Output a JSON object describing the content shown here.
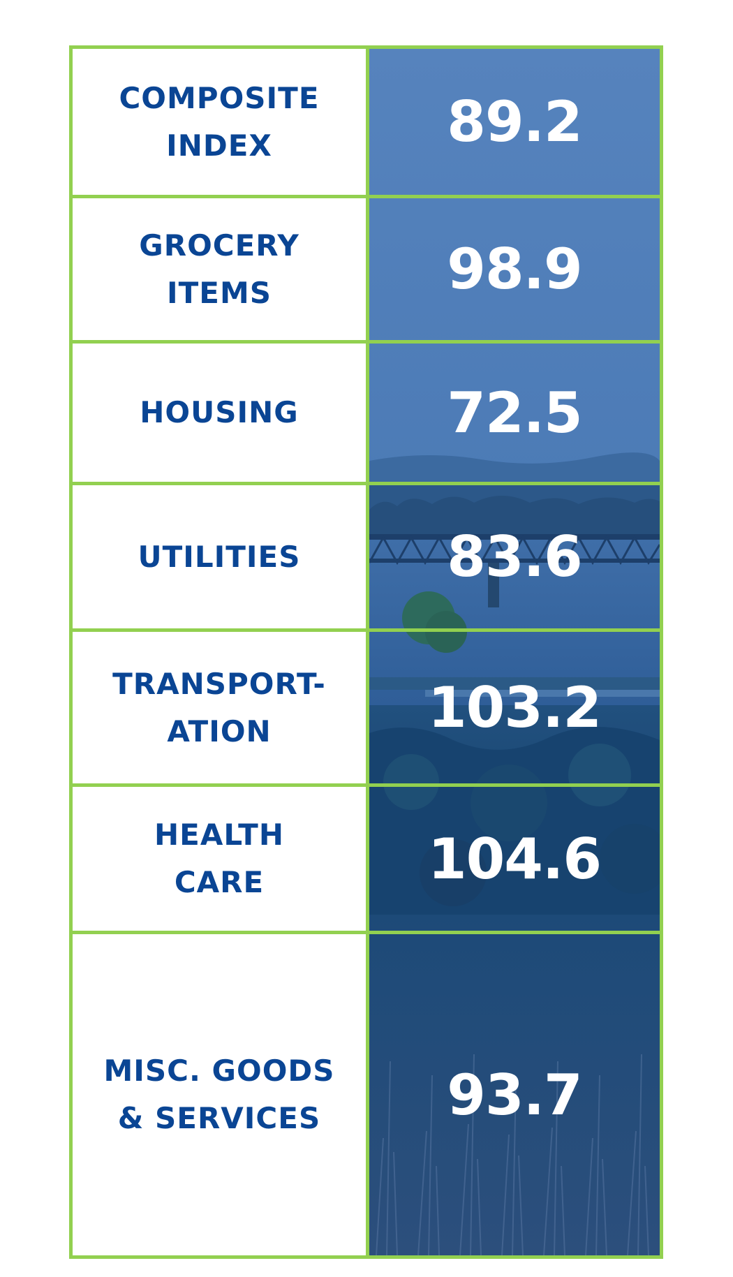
{
  "rows": [
    {
      "label_lines": [
        "Composite",
        "Index"
      ],
      "value": "89.2"
    },
    {
      "label_lines": [
        "Grocery",
        "Items"
      ],
      "value": "98.9"
    },
    {
      "label_lines": [
        "Housing"
      ],
      "value": "72.5"
    },
    {
      "label_lines": [
        "Utilities"
      ],
      "value": "83.6"
    },
    {
      "label_lines": [
        "Transport-",
        "ation"
      ],
      "value": "103.2"
    },
    {
      "label_lines": [
        "Health",
        "Care"
      ],
      "value": "104.6"
    },
    {
      "label_lines": [
        "Misc. Goods",
        "& Services"
      ],
      "value": "93.7"
    }
  ],
  "colors": {
    "border": "#92d050",
    "label_text": "#0a4594",
    "value_text": "#ffffff",
    "overlay_top": "#4f80bc",
    "overlay_bottom": "#123d78"
  }
}
